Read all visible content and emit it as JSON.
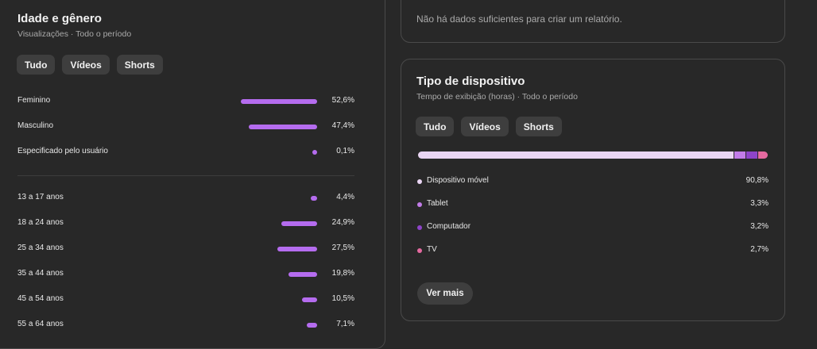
{
  "age_gender": {
    "title": "Idade e gênero",
    "subtitle": "Visualizações · Todo o período",
    "tabs": [
      {
        "label": "Tudo",
        "active": true
      },
      {
        "label": "Vídeos",
        "active": false
      },
      {
        "label": "Shorts",
        "active": false
      }
    ],
    "gender": [
      {
        "label": "Feminino",
        "value": "52,6%",
        "pct": 52.6
      },
      {
        "label": "Masculino",
        "value": "47,4%",
        "pct": 47.4
      },
      {
        "label": "Especificado pelo usuário",
        "value": "0,1%",
        "pct": 0.1
      }
    ],
    "age": [
      {
        "label": "13 a 17 anos",
        "value": "4,4%",
        "pct": 4.4
      },
      {
        "label": "18 a 24 anos",
        "value": "24,9%",
        "pct": 24.9
      },
      {
        "label": "25 a 34 anos",
        "value": "27,5%",
        "pct": 27.5
      },
      {
        "label": "35 a 44 anos",
        "value": "19,8%",
        "pct": 19.8
      },
      {
        "label": "45 a 54 anos",
        "value": "10,5%",
        "pct": 10.5
      },
      {
        "label": "55 a 64 anos",
        "value": "7,1%",
        "pct": 7.1
      }
    ],
    "bar_color": "#b56cef"
  },
  "no_data": {
    "message": "Não há dados suficientes para criar um relatório."
  },
  "device": {
    "title": "Tipo de dispositivo",
    "subtitle": "Tempo de exibição (horas) · Todo o período",
    "tabs": [
      {
        "label": "Tudo",
        "active": true
      },
      {
        "label": "Vídeos",
        "active": false
      },
      {
        "label": "Shorts",
        "active": false
      }
    ],
    "items": [
      {
        "label": "Dispositivo móvel",
        "value": "90,8%",
        "pct": 90.8,
        "color": "#e9d5f3"
      },
      {
        "label": "Tablet",
        "value": "3,3%",
        "pct": 3.3,
        "color": "#c27ce8"
      },
      {
        "label": "Computador",
        "value": "3,2%",
        "pct": 3.2,
        "color": "#8e44c9"
      },
      {
        "label": "TV",
        "value": "2,7%",
        "pct": 2.7,
        "color": "#e56aa0"
      }
    ],
    "more_button": "Ver mais"
  }
}
